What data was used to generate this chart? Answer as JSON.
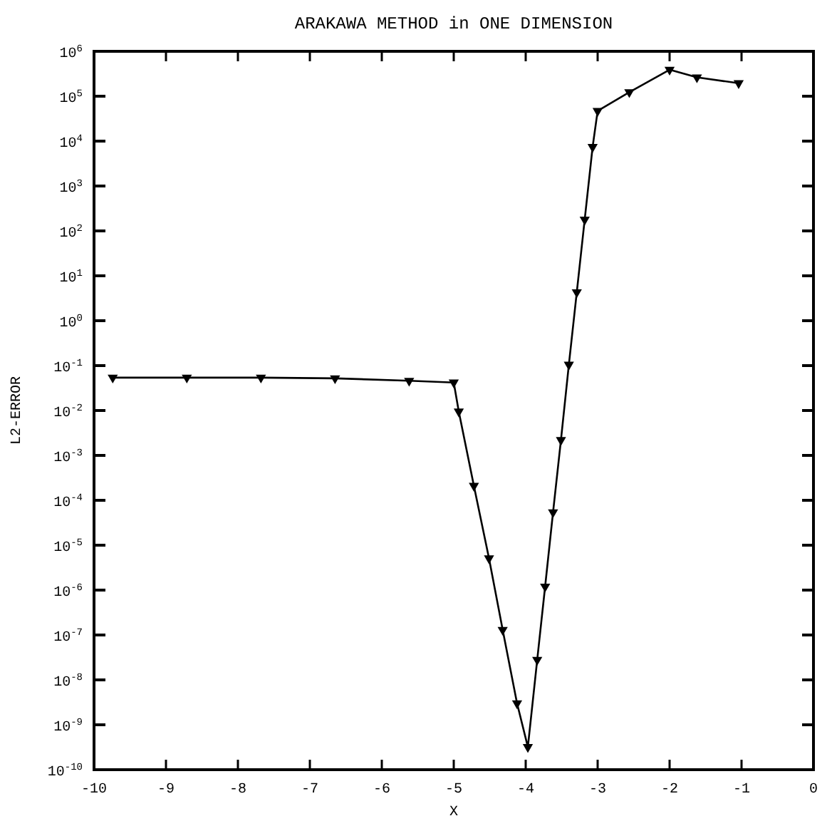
{
  "chart_data": {
    "type": "line",
    "title": "ARAKAWA METHOD in ONE DIMENSION",
    "xlabel": "X",
    "ylabel": "L2-ERROR",
    "x": [
      -9.74,
      -8.71,
      -7.68,
      -6.65,
      -5.62,
      -5.0,
      -4.93,
      -4.72,
      -4.51,
      -4.32,
      -4.12,
      -3.97,
      -3.84,
      -3.73,
      -3.62,
      -3.51,
      -3.4,
      -3.29,
      -3.18,
      -3.07,
      -3.0,
      -2.56,
      -2.0,
      -1.62,
      -1.04
    ],
    "series": [
      {
        "color": "#000000",
        "values": [
          0.054,
          0.054,
          0.054,
          0.052,
          0.046,
          0.042,
          0.0095,
          0.00021,
          5.1e-06,
          1.3e-07,
          3e-09,
          3.2e-10,
          2.8e-08,
          1.2e-06,
          5.4e-05,
          0.0022,
          0.105,
          4.3,
          178,
          7400,
          47000,
          123000,
          390000,
          263000,
          195000
        ]
      }
    ],
    "xlim": [
      -10,
      0
    ],
    "xticks": [
      -10,
      -9,
      -8,
      -7,
      -6,
      -5,
      -4,
      -3,
      -2,
      -1,
      0
    ],
    "ylim": [
      1e-10,
      1000000
    ],
    "log": "y",
    "yticks": [
      {
        "value": 1e-10,
        "label": "10$^{-10}$"
      },
      {
        "value": 1e-09,
        "label": "10$^{-9}$"
      },
      {
        "value": 1e-08,
        "label": "10$^{-8}$"
      },
      {
        "value": 1e-07,
        "label": "10$^{-7}$"
      },
      {
        "value": 1e-06,
        "label": "10$^{-6}$"
      },
      {
        "value": 1e-05,
        "label": "10$^{-5}$"
      },
      {
        "value": 0.0001,
        "label": "10$^{-4}$"
      },
      {
        "value": 0.001,
        "label": "10$^{-3}$"
      },
      {
        "value": 0.01,
        "label": "10$^{-2}$"
      },
      {
        "value": 0.1,
        "label": "10$^{-1}$"
      },
      {
        "value": 1,
        "label": "10$^{0}$"
      },
      {
        "value": 10,
        "label": "10$^{1}$"
      },
      {
        "value": 100,
        "label": "10$^{2}$"
      },
      {
        "value": 1000,
        "label": "10$^{3}$"
      },
      {
        "value": 10000,
        "label": "10$^{4}$"
      },
      {
        "value": 100000,
        "label": "10$^{5}$"
      },
      {
        "value": 1000000,
        "label": "10$^{6}$"
      }
    ],
    "marker": "triangle",
    "grid": false
  }
}
